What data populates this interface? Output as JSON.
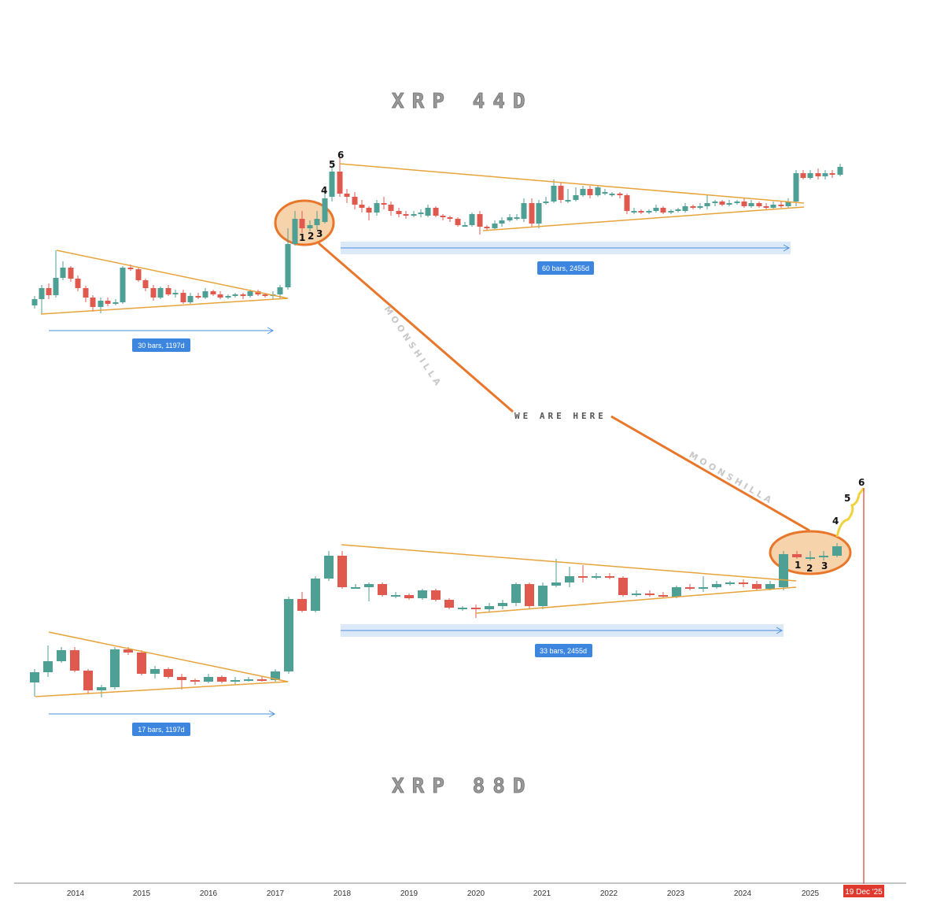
{
  "chart_data": [
    {
      "type": "candlestick",
      "title": "XRP 44D",
      "range_label": "60 bars, 2455d",
      "early_range_label": "30 bars, 1197d",
      "count_labels": [
        "1",
        "2",
        "3",
        "4",
        "5",
        "6"
      ],
      "watermark": "MOONSHILLA"
    },
    {
      "type": "candlestick",
      "title": "XRP 88D",
      "range_label": "33 bars, 2455d",
      "early_range_label": "17 bars, 1197d",
      "count_labels": [
        "1",
        "2",
        "3",
        "4",
        "5",
        "6"
      ],
      "watermark": "MOONSHILLA"
    }
  ],
  "annotation": "WE ARE HERE",
  "x_axis": {
    "ticks": [
      "2014",
      "2015",
      "2016",
      "2017",
      "2018",
      "2019",
      "2020",
      "2021",
      "2022",
      "2023",
      "2024",
      "2025"
    ],
    "cursor_label": "19 Dec '25"
  },
  "colors": {
    "up": "#4e9f94",
    "down": "#e0594f",
    "trendline": "#e8a33a",
    "connector": "#e8762b",
    "highlight_fill": "#f4c48f",
    "range_fill": "#dce9f8",
    "range_line": "#4a8fe0",
    "range_badge": "#3d86e0",
    "projection": "#f2d23c",
    "cursor": "#e03a2f"
  }
}
